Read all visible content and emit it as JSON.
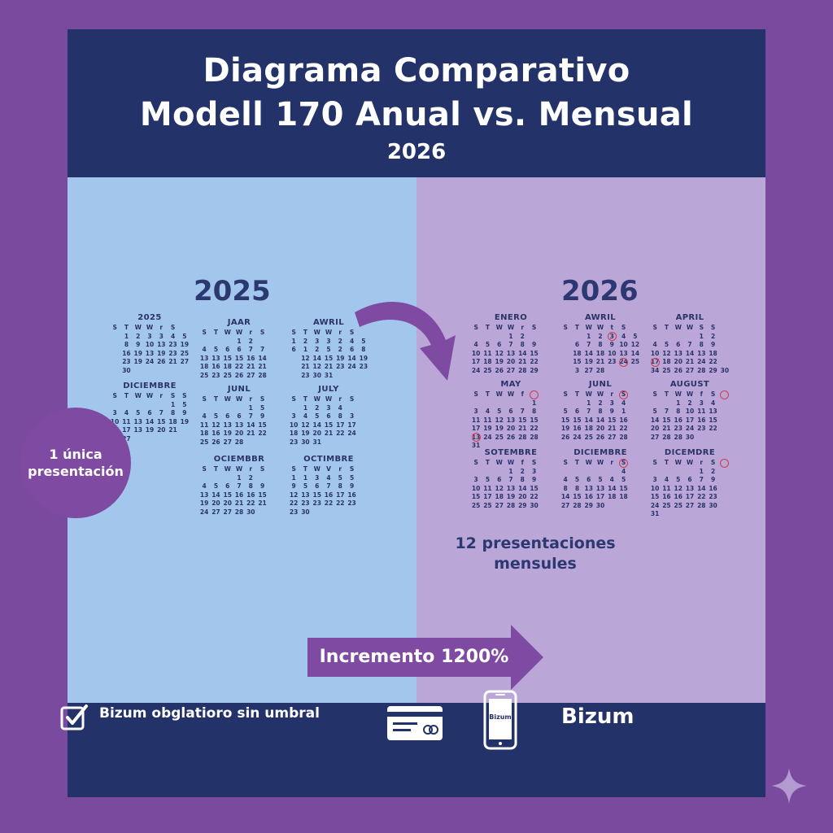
{
  "header": {
    "line1": "Diagrama Comparativo",
    "line2": "Modell 170 Anual vs. Mensual",
    "line3": "2026"
  },
  "left": {
    "year": "2025",
    "badge_line1": "1 única",
    "badge_line2": "presentación",
    "calendars": [
      {
        "title": "2025",
        "grid": [
          "S",
          "T",
          "W",
          "W",
          "r",
          "S",
          "",
          "",
          "1",
          "2",
          "3",
          "3",
          "4",
          "5",
          "",
          "8",
          "9",
          "10",
          "13",
          "23",
          "19",
          "",
          "16",
          "19",
          "13",
          "19",
          "23",
          "25",
          "",
          "23",
          "19",
          "24",
          "26",
          "21",
          "27",
          "",
          "30"
        ]
      },
      {
        "title": "JAAR",
        "grid": [
          "S",
          "T",
          "W",
          "W",
          "r",
          "S",
          "",
          "",
          "",
          "",
          "1",
          "2",
          "",
          "",
          "4",
          "5",
          "6",
          "6",
          "7",
          "7",
          "",
          "13",
          "13",
          "15",
          "15",
          "16",
          "14",
          "",
          "18",
          "16",
          "18",
          "22",
          "21",
          "21",
          "",
          "25",
          "23",
          "25",
          "26",
          "27",
          "28",
          ""
        ]
      },
      {
        "title": "AWRIL",
        "grid": [
          "S",
          "T",
          "W",
          "W",
          "r",
          "S",
          "",
          "1",
          "2",
          "3",
          "3",
          "2",
          "4",
          "5",
          "6",
          "1",
          "2",
          "5",
          "2",
          "6",
          "8",
          "",
          "12",
          "14",
          "15",
          "19",
          "14",
          "19",
          "",
          "21",
          "12",
          "21",
          "23",
          "24",
          "23",
          "",
          "23",
          "30",
          "31",
          "",
          "",
          "",
          ""
        ]
      },
      {
        "title": "DICIEMBRE",
        "grid": [
          "S",
          "T",
          "W",
          "W",
          "r",
          "S",
          "S",
          "",
          "",
          "",
          "",
          "",
          "1",
          "5",
          "3",
          "4",
          "5",
          "6",
          "7",
          "8",
          "9",
          "10",
          "11",
          "13",
          "14",
          "15",
          "18",
          "19",
          "16",
          "17",
          "13",
          "19",
          "20",
          "21",
          "",
          "3",
          "27",
          "",
          "",
          "",
          "",
          ""
        ]
      },
      {
        "title": "JUNL",
        "grid": [
          "S",
          "T",
          "W",
          "W",
          "r",
          "S",
          "",
          "",
          "",
          "",
          "",
          "1",
          "5",
          "",
          "4",
          "5",
          "6",
          "6",
          "7",
          "9",
          "",
          "11",
          "12",
          "13",
          "13",
          "14",
          "15",
          "",
          "18",
          "16",
          "19",
          "20",
          "21",
          "22",
          "",
          "25",
          "26",
          "27",
          "28",
          "",
          "",
          ""
        ]
      },
      {
        "title": "JULY",
        "grid": [
          "S",
          "T",
          "W",
          "W",
          "r",
          "S",
          "",
          "",
          "1",
          "2",
          "3",
          "4",
          "",
          "",
          "3",
          "4",
          "5",
          "6",
          "8",
          "3",
          "",
          "10",
          "12",
          "14",
          "15",
          "17",
          "17",
          "",
          "18",
          "19",
          "20",
          "21",
          "22",
          "24",
          "",
          "23",
          "30",
          "31",
          "",
          "",
          "",
          ""
        ]
      },
      {
        "title": "OCIEMBBR",
        "grid": [
          "S",
          "T",
          "W",
          "W",
          "r",
          "S",
          "",
          "",
          "",
          "",
          "1",
          "2",
          "",
          "",
          "4",
          "5",
          "6",
          "7",
          "8",
          "9",
          "",
          "13",
          "14",
          "15",
          "16",
          "16",
          "15",
          "",
          "19",
          "20",
          "20",
          "21",
          "22",
          "21",
          "",
          "24",
          "27",
          "27",
          "28",
          "30",
          "",
          ""
        ]
      },
      {
        "title": "OCTIMBRE",
        "grid": [
          "S",
          "T",
          "W",
          "V",
          "r",
          "S",
          "",
          "1",
          "1",
          "3",
          "4",
          "5",
          "5",
          "",
          "9",
          "5",
          "6",
          "7",
          "8",
          "9",
          "",
          "12",
          "13",
          "15",
          "16",
          "17",
          "16",
          "",
          "22",
          "23",
          "23",
          "22",
          "22",
          "23",
          "",
          "23",
          "30",
          "",
          "",
          "",
          "",
          ""
        ]
      }
    ]
  },
  "right": {
    "year": "2026",
    "caption_line1": "12 presentaciones",
    "caption_line2": "mensules",
    "calendars": [
      {
        "title": "ENERO",
        "grid": [
          "S",
          "T",
          "W",
          "W",
          "r",
          "S",
          "",
          "",
          "",
          "",
          "1",
          "2",
          "",
          "",
          "4",
          "5",
          "6",
          "7",
          "8",
          "9",
          "",
          "10",
          "11",
          "12",
          "13",
          "14",
          "15",
          "",
          "17",
          "18",
          "19",
          "20",
          "21",
          "22",
          "",
          "24",
          "25",
          "26",
          "27",
          "28",
          "29",
          ""
        ]
      },
      {
        "title": "AWRIL",
        "grid": [
          "S",
          "T",
          "W",
          "W",
          "t",
          "S",
          "",
          "",
          "",
          "1",
          "2",
          "3",
          "4",
          "5",
          "",
          "6",
          "7",
          "8",
          "9",
          "10",
          "12",
          "",
          "18",
          "14",
          "18",
          "10",
          "13",
          "14",
          "",
          "15",
          "19",
          "21",
          "23",
          "24",
          "25",
          "",
          "3",
          "27",
          "28",
          "",
          "",
          "",
          ""
        ]
      },
      {
        "title": "APRIL",
        "grid": [
          "S",
          "T",
          "W",
          "W",
          "S",
          "S",
          "",
          "",
          "",
          "",
          "",
          "1",
          "2",
          "",
          "4",
          "5",
          "6",
          "7",
          "8",
          "9",
          "",
          "10",
          "12",
          "13",
          "14",
          "13",
          "18",
          "",
          "17",
          "18",
          "20",
          "21",
          "24",
          "22",
          "",
          "34",
          "25",
          "26",
          "27",
          "28",
          "29",
          "30"
        ]
      },
      {
        "title": "MAY",
        "grid": [
          "S",
          "T",
          "W",
          "W",
          "f",
          "",
          "",
          "",
          "",
          "",
          "",
          "",
          "1",
          "",
          "3",
          "4",
          "5",
          "6",
          "7",
          "8",
          "",
          "11",
          "11",
          "12",
          "13",
          "15",
          "15",
          "",
          "17",
          "19",
          "19",
          "20",
          "21",
          "22",
          "",
          "13",
          "24",
          "25",
          "26",
          "28",
          "28",
          "",
          "31"
        ]
      },
      {
        "title": "JUNL",
        "grid": [
          "S",
          "T",
          "W",
          "W",
          "r",
          "S",
          "",
          "",
          "",
          "1",
          "2",
          "3",
          "4",
          "",
          "5",
          "6",
          "7",
          "8",
          "9",
          "1",
          "",
          "15",
          "15",
          "14",
          "14",
          "15",
          "16",
          "",
          "19",
          "16",
          "18",
          "20",
          "21",
          "22",
          "",
          "26",
          "24",
          "25",
          "26",
          "27",
          "28",
          ""
        ]
      },
      {
        "title": "AUGUST",
        "grid": [
          "S",
          "T",
          "W",
          "W",
          "f",
          "S",
          "",
          "",
          "",
          "1",
          "2",
          "3",
          "4",
          "",
          "5",
          "7",
          "8",
          "10",
          "11",
          "13",
          "",
          "14",
          "15",
          "16",
          "17",
          "16",
          "15",
          "",
          "20",
          "21",
          "23",
          "24",
          "23",
          "22",
          "",
          "27",
          "28",
          "28",
          "30",
          "",
          "",
          ""
        ]
      },
      {
        "title": "SOTEMBRE",
        "grid": [
          "S",
          "T",
          "W",
          "W",
          "f",
          "S",
          "",
          "",
          "",
          "",
          "1",
          "2",
          "3",
          "",
          "3",
          "5",
          "6",
          "7",
          "8",
          "9",
          "",
          "10",
          "11",
          "12",
          "13",
          "14",
          "15",
          "",
          "15",
          "17",
          "18",
          "19",
          "20",
          "22",
          "",
          "25",
          "25",
          "27",
          "28",
          "29",
          "30",
          ""
        ]
      },
      {
        "title": "DICIEMBRE",
        "grid": [
          "S",
          "T",
          "W",
          "W",
          "r",
          "S",
          "",
          "",
          "",
          "",
          "",
          "",
          "4",
          "",
          "4",
          "5",
          "6",
          "5",
          "4",
          "5",
          "",
          "8",
          "8",
          "13",
          "13",
          "14",
          "15",
          "",
          "14",
          "15",
          "16",
          "17",
          "18",
          "18",
          "",
          "27",
          "28",
          "29",
          "30",
          "",
          "",
          ""
        ]
      },
      {
        "title": "DICEMDRE",
        "grid": [
          "S",
          "T",
          "W",
          "W",
          "r",
          "S",
          "",
          "",
          "",
          "",
          "",
          "1",
          "2",
          "",
          "3",
          "4",
          "5",
          "6",
          "7",
          "9",
          "",
          "10",
          "11",
          "12",
          "13",
          "14",
          "16",
          "",
          "15",
          "16",
          "16",
          "17",
          "22",
          "23",
          "",
          "24",
          "25",
          "25",
          "27",
          "28",
          "30",
          "",
          "31"
        ]
      }
    ]
  },
  "increment": {
    "label": "Incremento 1200%"
  },
  "footer": {
    "check_text": "Bizum obglatioro sin umbral",
    "phone_label": "Bizum",
    "brand": "Bizum"
  },
  "colors": {
    "outer": "#7a4a9e",
    "navy": "#233369",
    "left_panel": "#a3c7ec",
    "right_panel": "#bba6d8",
    "accent_purple": "#7f4aa2",
    "mark_red": "#d23a4a"
  },
  "icons": [
    "curved-arrow-icon",
    "check-icon",
    "credit-card-icon",
    "phone-icon",
    "sparkle-icon",
    "increment-arrow-icon"
  ]
}
